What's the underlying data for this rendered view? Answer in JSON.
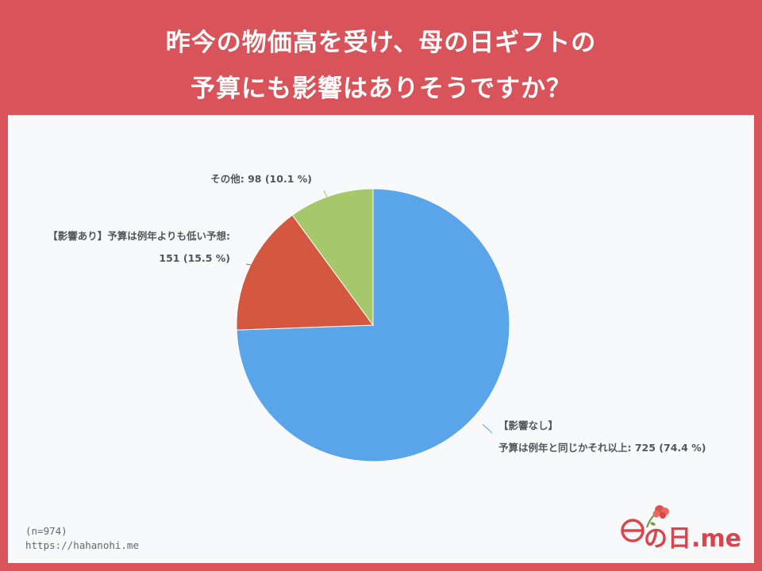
{
  "title": {
    "line1": "昨今の物価高を受け、母の日ギフトの",
    "line2": "予算にも影響はありそうですか？"
  },
  "chart_data": {
    "type": "pie",
    "slices": [
      {
        "label_lines": [
          "【影響なし】",
          "予算は例年と同じかそれ以上: 725 (74.4 %)"
        ],
        "value": 725,
        "percent": 74.4,
        "color": "#5aa5ea"
      },
      {
        "label_lines": [
          "【影響あり】予算は例年よりも低い予想:",
          "151 (15.5 %)"
        ],
        "value": 151,
        "percent": 15.5,
        "color": "#d4573f"
      },
      {
        "label_lines": [
          "その他: 98 (10.1 %)"
        ],
        "value": 98,
        "percent": 10.1,
        "color": "#a6c86a"
      }
    ]
  },
  "footer": {
    "n": "(n=974)",
    "url": "https://hahanohi.me"
  },
  "logo": {
    "text": "の日.me"
  },
  "colors": {
    "background": "#d9545a",
    "panel": "#f8f9fa"
  }
}
